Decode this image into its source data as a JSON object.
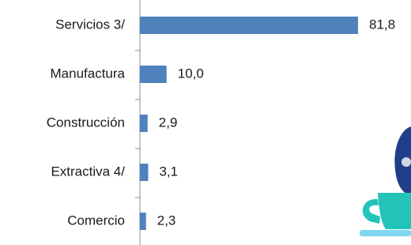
{
  "chart_data": {
    "type": "hbar",
    "categories": [
      "Servicios 3/",
      "Manufactura",
      "Construcción",
      "Extractiva  4/",
      "Comercio"
    ],
    "values": [
      81.8,
      10.0,
      2.9,
      3.1,
      2.3
    ],
    "value_labels": [
      "81,8",
      "10,0",
      "2,9",
      "3,1",
      "2,3"
    ],
    "color": "#4f81bd"
  }
}
